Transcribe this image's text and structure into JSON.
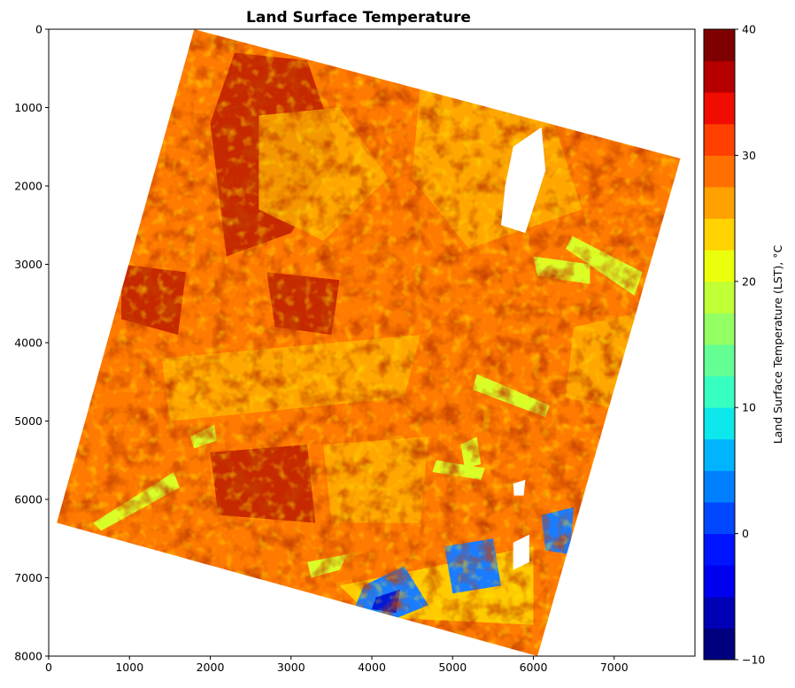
{
  "chart_data": {
    "type": "heatmap",
    "title": "Land Surface Temperature",
    "xlabel": "",
    "ylabel": "",
    "xlim": [
      0,
      8000
    ],
    "ylim": [
      8000,
      0
    ],
    "x_ticks": [
      "0",
      "1000",
      "2000",
      "3000",
      "4000",
      "5000",
      "6000",
      "7000"
    ],
    "y_ticks": [
      "0",
      "1000",
      "2000",
      "3000",
      "4000",
      "5000",
      "6000",
      "7000",
      "8000"
    ],
    "image_footprint": {
      "corners": [
        [
          1800,
          0
        ],
        [
          7820,
          1650
        ],
        [
          6050,
          8000
        ],
        [
          100,
          6300
        ]
      ]
    },
    "features": [
      {
        "kind": "hot",
        "points": [
          [
            2300,
            300
          ],
          [
            3200,
            400
          ],
          [
            3600,
            1600
          ],
          [
            3000,
            2600
          ],
          [
            2200,
            2900
          ],
          [
            2000,
            1200
          ]
        ]
      },
      {
        "kind": "hot",
        "points": [
          [
            2700,
            3100
          ],
          [
            3600,
            3200
          ],
          [
            3500,
            3900
          ],
          [
            2800,
            3800
          ]
        ]
      },
      {
        "kind": "hot",
        "points": [
          [
            900,
            3000
          ],
          [
            1700,
            3100
          ],
          [
            1600,
            3900
          ],
          [
            900,
            3700
          ]
        ]
      },
      {
        "kind": "hot",
        "points": [
          [
            2000,
            5400
          ],
          [
            3200,
            5300
          ],
          [
            3300,
            6300
          ],
          [
            2100,
            6200
          ]
        ]
      },
      {
        "kind": "warm",
        "points": [
          [
            2600,
            1100
          ],
          [
            3600,
            1000
          ],
          [
            4200,
            1900
          ],
          [
            3400,
            2700
          ],
          [
            2600,
            2300
          ]
        ]
      },
      {
        "kind": "warm",
        "points": [
          [
            4600,
            700
          ],
          [
            6100,
            700
          ],
          [
            6600,
            2300
          ],
          [
            5200,
            2800
          ],
          [
            4500,
            1900
          ]
        ]
      },
      {
        "kind": "warm",
        "points": [
          [
            6500,
            3800
          ],
          [
            7400,
            3600
          ],
          [
            7300,
            4900
          ],
          [
            6400,
            4700
          ]
        ]
      },
      {
        "kind": "warm",
        "points": [
          [
            1400,
            4200
          ],
          [
            4600,
            3900
          ],
          [
            4400,
            4700
          ],
          [
            1500,
            5000
          ]
        ]
      },
      {
        "kind": "warm",
        "points": [
          [
            3400,
            5300
          ],
          [
            4700,
            5200
          ],
          [
            4600,
            6300
          ],
          [
            3500,
            6300
          ]
        ]
      },
      {
        "kind": "lake",
        "points": [
          [
            6480,
            2640
          ],
          [
            7350,
            3100
          ],
          [
            7250,
            3400
          ],
          [
            6400,
            2800
          ]
        ]
      },
      {
        "kind": "lake",
        "points": [
          [
            6000,
            2900
          ],
          [
            6700,
            3000
          ],
          [
            6700,
            3250
          ],
          [
            6050,
            3150
          ]
        ]
      },
      {
        "kind": "lake",
        "points": [
          [
            5300,
            4400
          ],
          [
            6200,
            4800
          ],
          [
            6150,
            4950
          ],
          [
            5250,
            4600
          ]
        ]
      },
      {
        "kind": "lake",
        "points": [
          [
            550,
            6300
          ],
          [
            1550,
            5650
          ],
          [
            1620,
            5850
          ],
          [
            650,
            6400
          ]
        ]
      },
      {
        "kind": "lake",
        "points": [
          [
            1750,
            5200
          ],
          [
            2050,
            5050
          ],
          [
            2080,
            5250
          ],
          [
            1800,
            5350
          ]
        ]
      },
      {
        "kind": "lake",
        "points": [
          [
            4800,
            5500
          ],
          [
            5400,
            5600
          ],
          [
            5350,
            5750
          ],
          [
            4750,
            5650
          ]
        ]
      },
      {
        "kind": "lake",
        "points": [
          [
            3200,
            6800
          ],
          [
            3700,
            6700
          ],
          [
            3600,
            6900
          ],
          [
            3250,
            7000
          ]
        ]
      },
      {
        "kind": "lake",
        "points": [
          [
            5100,
            5300
          ],
          [
            5300,
            5200
          ],
          [
            5350,
            5550
          ],
          [
            5150,
            5600
          ]
        ]
      },
      {
        "kind": "alpine",
        "points": [
          [
            3600,
            7100
          ],
          [
            6000,
            6600
          ],
          [
            6000,
            7600
          ],
          [
            4000,
            7500
          ]
        ]
      },
      {
        "kind": "cold",
        "points": [
          [
            3900,
            7100
          ],
          [
            4400,
            6850
          ],
          [
            4700,
            7350
          ],
          [
            4100,
            7600
          ],
          [
            3800,
            7350
          ]
        ]
      },
      {
        "kind": "cold",
        "points": [
          [
            4900,
            6600
          ],
          [
            5500,
            6500
          ],
          [
            5600,
            7100
          ],
          [
            5000,
            7200
          ]
        ]
      },
      {
        "kind": "cold",
        "points": [
          [
            6100,
            6200
          ],
          [
            6500,
            6100
          ],
          [
            6450,
            6700
          ],
          [
            6150,
            6650
          ]
        ]
      },
      {
        "kind": "deep-cold",
        "points": [
          [
            4050,
            7250
          ],
          [
            4350,
            7150
          ],
          [
            4300,
            7450
          ],
          [
            4000,
            7400
          ]
        ]
      },
      {
        "kind": "nodata",
        "points": [
          [
            5750,
            1500
          ],
          [
            6100,
            1250
          ],
          [
            6150,
            1800
          ],
          [
            5900,
            2600
          ],
          [
            5600,
            2500
          ],
          [
            5650,
            2000
          ]
        ]
      },
      {
        "kind": "nodata",
        "points": [
          [
            5750,
            6550
          ],
          [
            5950,
            6450
          ],
          [
            5950,
            6800
          ],
          [
            5750,
            6900
          ]
        ]
      },
      {
        "kind": "nodata",
        "points": [
          [
            5750,
            5800
          ],
          [
            5900,
            5750
          ],
          [
            5880,
            5950
          ],
          [
            5760,
            5950
          ]
        ]
      }
    ],
    "colorbar": {
      "label": "Land Surface Temperature (LST), °C",
      "range": [
        -10,
        40
      ],
      "step": 2.5,
      "ticks": [
        -10,
        0,
        10,
        20,
        30,
        40
      ],
      "tick_labels": [
        "−10",
        "0",
        "10",
        "20",
        "30",
        "40"
      ],
      "colors": [
        "#00007f",
        "#0000b5",
        "#0000f1",
        "#0014ff",
        "#0048ff",
        "#0080ff",
        "#00b4ff",
        "#0ce8eb",
        "#36ffc1",
        "#63ff94",
        "#94ff63",
        "#c1ff36",
        "#ebff0c",
        "#ffd200",
        "#ffa200",
        "#ff7000",
        "#ff4000",
        "#f10c00",
        "#b60000",
        "#7f0000"
      ]
    },
    "legend": "none",
    "grid": false
  }
}
